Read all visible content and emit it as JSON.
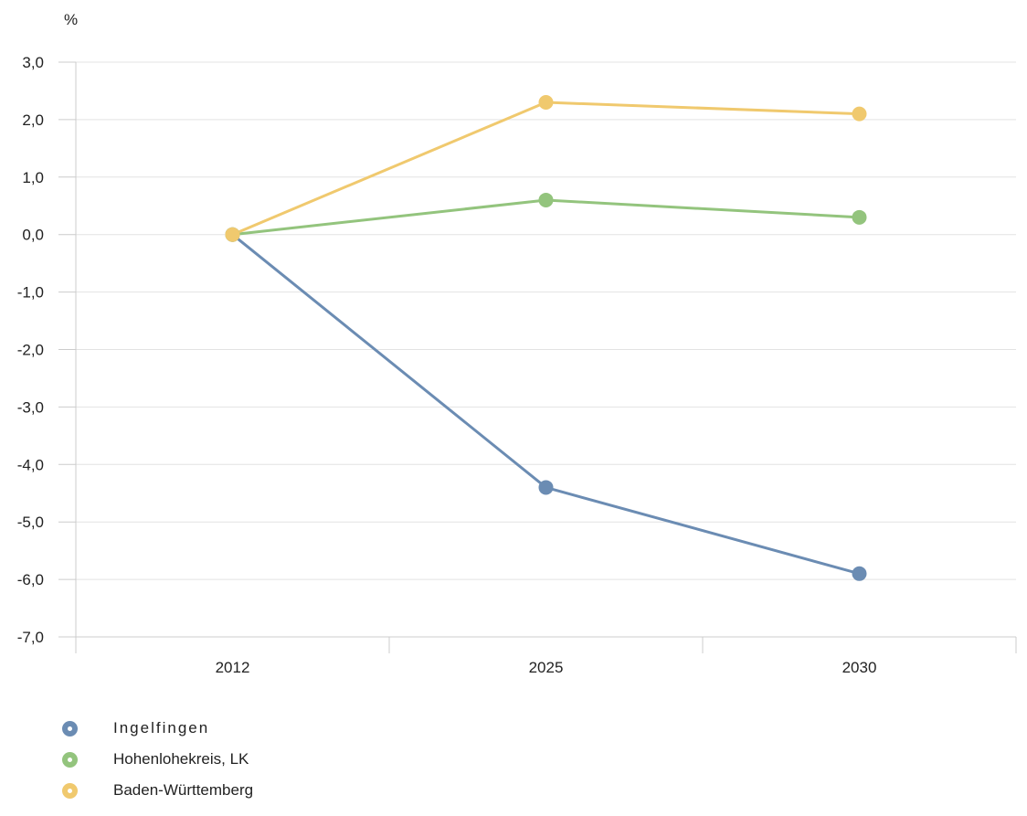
{
  "chart_data": {
    "type": "line",
    "ylabel": "%",
    "categories": [
      "2012",
      "2025",
      "2030"
    ],
    "ylim": [
      -7.0,
      3.0
    ],
    "y_ticks": [
      "3,0",
      "2,0",
      "1,0",
      "0,0",
      "-1,0",
      "-2,0",
      "-3,0",
      "-4,0",
      "-5,0",
      "-6,0",
      "-7,0"
    ],
    "y_tick_values": [
      3,
      2,
      1,
      0,
      -1,
      -2,
      -3,
      -4,
      -5,
      -6,
      -7
    ],
    "grid": true,
    "legend_position": "bottom-left",
    "series": [
      {
        "name": "Ingelfingen",
        "values": [
          0.0,
          -4.4,
          -5.9
        ],
        "color": "#6b8cb3"
      },
      {
        "name": "Hohenlohekreis, LK",
        "values": [
          0.0,
          0.6,
          0.3
        ],
        "color": "#93c47d"
      },
      {
        "name": "Baden-Württemberg",
        "values": [
          0.0,
          2.3,
          2.1
        ],
        "color": "#f0c96e"
      }
    ]
  }
}
